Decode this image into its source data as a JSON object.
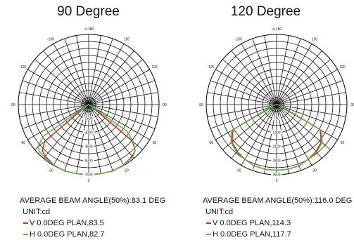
{
  "colors": {
    "v_plane": "#e0281e",
    "h_plane": "#54b948",
    "grid": "#111111"
  },
  "chart_data": [
    {
      "type": "polar",
      "title": "90 Degree",
      "angle_labels": [
        "-/+180",
        "150",
        "120",
        "90",
        "60",
        "30",
        "0",
        "-30",
        "-60",
        "-90",
        "-120",
        "-150"
      ],
      "radial_ticks": [
        1500,
        3000,
        4500,
        6000,
        7500
      ],
      "rmax": 7500,
      "beam_angle_text": "AVERAGE BEAM ANGLE(50%):83.1 DEG",
      "unit_text": "UNIT:cd",
      "series": [
        {
          "name": "V 0.0DEG PLAN,83.5",
          "color_key": "v_plane",
          "angles": [
            -60,
            -50,
            -45,
            -40,
            -30,
            -20,
            -10,
            0,
            10,
            20,
            30,
            40,
            45,
            50,
            60
          ],
          "values": [
            330,
            6100,
            7000,
            7200,
            7450,
            7550,
            7500,
            7500,
            7500,
            7550,
            7450,
            7200,
            7000,
            6100,
            330
          ]
        },
        {
          "name": "H 0.0DEG PLAN,82.7",
          "color_key": "h_plane",
          "angles": [
            -60,
            -55,
            -50,
            -45,
            -40,
            -30,
            -20,
            -10,
            0,
            10,
            20,
            30,
            40,
            45,
            50,
            55,
            60
          ],
          "values": [
            330,
            5900,
            7100,
            7300,
            7350,
            7450,
            7550,
            7500,
            7500,
            7500,
            7550,
            7450,
            7300,
            7000,
            6200,
            5000,
            330
          ]
        }
      ]
    },
    {
      "type": "polar",
      "title": "120 Degree",
      "angle_labels": [
        "-/+180",
        "150",
        "120",
        "90",
        "60",
        "30",
        "0",
        "-30",
        "-60",
        "-90",
        "-120",
        "-150"
      ],
      "radial_ticks": [
        700,
        1400,
        2100,
        2800,
        3500
      ],
      "rmax": 3500,
      "beam_angle_text": "AVERAGE BEAM ANGLE(50%):116.0 DEG",
      "unit_text": "UNIT:cd",
      "series": [
        {
          "name": "V 0.0DEG PLAN,114.3",
          "color_key": "v_plane",
          "angles": [
            -75,
            -60,
            -50,
            -40,
            -30,
            -20,
            -10,
            0,
            10,
            20,
            30,
            40,
            50,
            60,
            75
          ],
          "values": [
            150,
            2500,
            2900,
            3050,
            3150,
            3250,
            3280,
            3280,
            3280,
            3250,
            3150,
            3050,
            2900,
            2500,
            150
          ]
        },
        {
          "name": "H 0.0DEG PLAN,117.7",
          "color_key": "h_plane",
          "angles": [
            -75,
            -60,
            -50,
            -40,
            -30,
            -20,
            -10,
            0,
            10,
            20,
            30,
            40,
            50,
            60,
            75
          ],
          "values": [
            150,
            2600,
            2950,
            3100,
            3150,
            3250,
            3280,
            3280,
            3280,
            3250,
            3150,
            3100,
            2950,
            2600,
            150
          ]
        }
      ]
    }
  ]
}
